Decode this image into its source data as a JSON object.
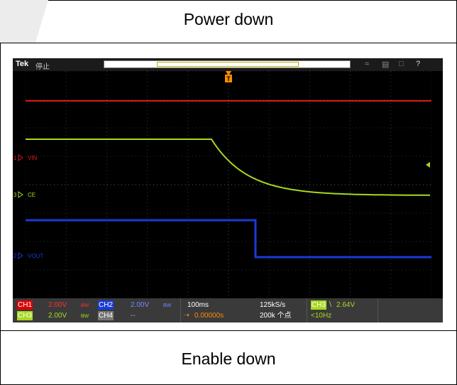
{
  "captions": {
    "top": "Power down",
    "bottom": "Enable down"
  },
  "scope": {
    "brand": "Tek",
    "status": "停止",
    "trigger_marker": "T",
    "channels": [
      {
        "id": "1",
        "name": "VIN",
        "color": "#e01818"
      },
      {
        "id": "3",
        "name": "CE",
        "color": "#a8d820"
      },
      {
        "id": "2",
        "name": "VOUT",
        "color": "#1a3ad8"
      }
    ],
    "bottom": {
      "ch1_label": "CH1",
      "ch1_scale": "2.00V",
      "ch1_coupling": "BW",
      "ch2_label": "CH2",
      "ch2_scale": "2.00V",
      "ch2_coupling": "BW",
      "ch3_label": "CH3",
      "ch3_scale": "2.00V",
      "ch3_coupling": "BW",
      "ch4_label": "CH4",
      "ch4_scale": "--",
      "timebase": "100ms",
      "offset": "0.00000s",
      "sample_rate": "125kS/s",
      "record_length": "200k 个点",
      "trigger_source": "CH3",
      "trigger_level": "2.64V",
      "trigger_freq": "<10Hz"
    },
    "colors": {
      "ch1": "#e01818",
      "ch2": "#1a3ad8",
      "ch3": "#a8d820",
      "trigger": "#ff8c00",
      "grid": "#5a5a5a"
    },
    "icons": [
      "wifi-icon",
      "network-icon",
      "usb-icon",
      "help-icon"
    ]
  }
}
